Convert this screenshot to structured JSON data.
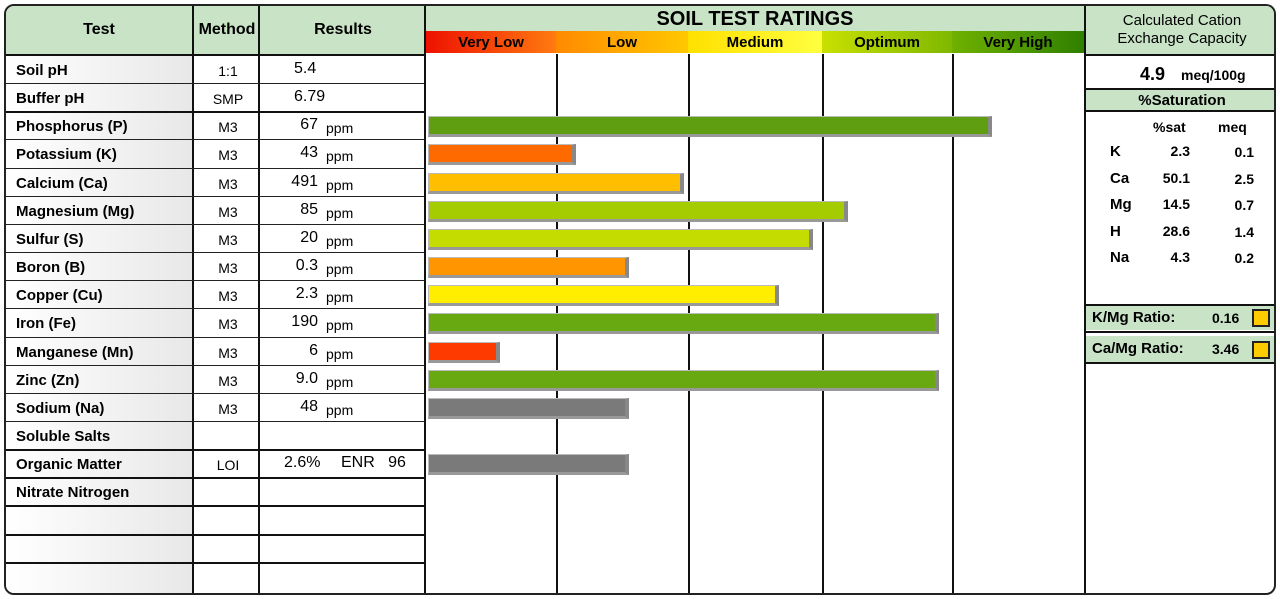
{
  "header": {
    "test": "Test",
    "method": "Method",
    "results": "Results",
    "ratings_title": "SOIL TEST RATINGS",
    "scale": [
      {
        "label": "Very Low",
        "from": "#ee1100",
        "to": "#ff7a10"
      },
      {
        "label": "Low",
        "from": "#ff8a00",
        "to": "#ffc800"
      },
      {
        "label": "Medium",
        "from": "#ffe000",
        "to": "#ffff40"
      },
      {
        "label": "Optimum",
        "from": "#c8e000",
        "to": "#7fb800"
      },
      {
        "label": "Very High",
        "from": "#6fb000",
        "to": "#2f8000"
      }
    ]
  },
  "rows": [
    {
      "name": "Soil pH",
      "method": "1:1",
      "value": "5.4",
      "unit": ""
    },
    {
      "name": "Buffer pH",
      "method": "SMP",
      "value": "6.79",
      "unit": ""
    },
    {
      "name": "Phosphorus (P)",
      "method": "M3",
      "value": "67",
      "unit": "ppm"
    },
    {
      "name": "Potassium (K)",
      "method": "M3",
      "value": "43",
      "unit": "ppm"
    },
    {
      "name": "Calcium (Ca)",
      "method": "M3",
      "value": "491",
      "unit": "ppm"
    },
    {
      "name": "Magnesium (Mg)",
      "method": "M3",
      "value": "85",
      "unit": "ppm"
    },
    {
      "name": "Sulfur (S)",
      "method": "M3",
      "value": "20",
      "unit": "ppm"
    },
    {
      "name": "Boron (B)",
      "method": "M3",
      "value": "0.3",
      "unit": "ppm"
    },
    {
      "name": "Copper (Cu)",
      "method": "M3",
      "value": "2.3",
      "unit": "ppm"
    },
    {
      "name": "Iron (Fe)",
      "method": "M3",
      "value": "190",
      "unit": "ppm"
    },
    {
      "name": "Manganese (Mn)",
      "method": "M3",
      "value": "6",
      "unit": "ppm"
    },
    {
      "name": "Zinc (Zn)",
      "method": "M3",
      "value": "9.0",
      "unit": "ppm"
    },
    {
      "name": "Sodium (Na)",
      "method": "M3",
      "value": "48",
      "unit": "ppm"
    },
    {
      "name": "Soluble Salts",
      "method": "",
      "value": "",
      "unit": ""
    },
    {
      "name": "Organic Matter",
      "method": "LOI",
      "value": "2.6%",
      "unit": "ENR   96"
    },
    {
      "name": "Nitrate Nitrogen",
      "method": "",
      "value": "",
      "unit": ""
    },
    {
      "name": "",
      "method": "",
      "value": "",
      "unit": ""
    },
    {
      "name": "",
      "method": "",
      "value": "",
      "unit": ""
    },
    {
      "name": "",
      "method": "",
      "value": "",
      "unit": ""
    }
  ],
  "chart_data": {
    "type": "bar",
    "orientation": "horizontal",
    "title": "SOIL TEST RATINGS",
    "scale_categories": [
      "Very Low",
      "Low",
      "Medium",
      "Optimum",
      "Very High"
    ],
    "note": "",
    "bars": [
      {
        "test": "Phosphorus (P)",
        "rating": 4.3,
        "color": "#5e9e10"
      },
      {
        "test": "Potassium (K)",
        "rating": 1.15,
        "color": "#ff6a00"
      },
      {
        "test": "Calcium (Ca)",
        "rating": 1.97,
        "color": "#ffbe00"
      },
      {
        "test": "Magnesium (Mg)",
        "rating": 3.2,
        "color": "#a4cc00"
      },
      {
        "test": "Sulfur (S)",
        "rating": 2.93,
        "color": "#c4dc00"
      },
      {
        "test": "Boron (B)",
        "rating": 1.55,
        "color": "#ff9500"
      },
      {
        "test": "Copper (Cu)",
        "rating": 2.68,
        "color": "#ffee00"
      },
      {
        "test": "Iron (Fe)",
        "rating": 3.9,
        "color": "#68a810"
      },
      {
        "test": "Manganese (Mn)",
        "rating": 0.57,
        "color": "#ff3a00"
      },
      {
        "test": "Zinc (Zn)",
        "rating": 3.9,
        "color": "#68a810"
      },
      {
        "test": "Sodium (Na)",
        "rating": 1.55,
        "color": "#7a7a7a"
      },
      {
        "test": "Organic Matter",
        "rating": 1.55,
        "color": "#7a7a7a"
      }
    ]
  },
  "cec": {
    "title_line1": "Calculated Cation",
    "title_line2": "Exchange Capacity",
    "value": "4.9",
    "unit": "meq/100g",
    "saturation_title": "%Saturation",
    "col_sat": "%sat",
    "col_meq": "meq",
    "rows": [
      {
        "ion": "K",
        "sat": "2.3",
        "meq": "0.1"
      },
      {
        "ion": "Ca",
        "sat": "50.1",
        "meq": "2.5"
      },
      {
        "ion": "Mg",
        "sat": "14.5",
        "meq": "0.7"
      },
      {
        "ion": "H",
        "sat": "28.6",
        "meq": "1.4"
      },
      {
        "ion": "Na",
        "sat": "4.3",
        "meq": "0.2"
      }
    ],
    "kmg_label": "K/Mg Ratio:",
    "kmg_value": "0.16",
    "camg_label": "Ca/Mg Ratio:",
    "camg_value": "3.46",
    "swatch_color": "#ffcc00"
  }
}
